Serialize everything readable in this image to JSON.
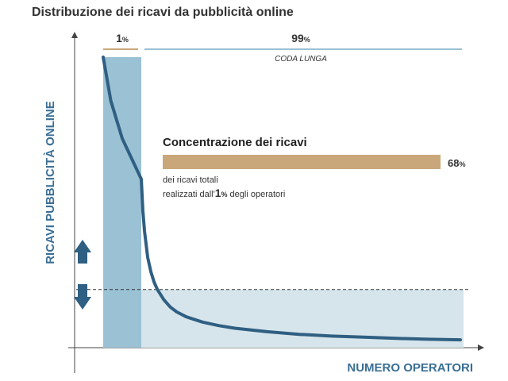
{
  "chart_data": {
    "type": "line",
    "title": "Distribuzione dei ricavi da pubblicità online",
    "xlabel": "NUMERO OPERATORI",
    "ylabel": "RICAVI PUBBLICITÀ ONLINE",
    "curve": {
      "x": [
        0,
        0.2,
        0.5,
        1,
        1.5,
        2,
        3,
        4,
        5,
        6,
        8,
        10,
        12,
        15,
        20,
        25,
        30,
        40,
        50,
        60,
        70,
        80,
        90,
        100
      ],
      "y": [
        100,
        85,
        72,
        58,
        47,
        40,
        31,
        26,
        22.5,
        20,
        16.5,
        14,
        12.3,
        10.6,
        8.8,
        7.6,
        6.7,
        5.5,
        4.6,
        4,
        3.6,
        3.2,
        2.9,
        2.7
      ]
    },
    "segments": {
      "head": {
        "label": "1",
        "unit": "%",
        "x_start": 0,
        "x_end": 1
      },
      "tail": {
        "label": "99",
        "unit": "%",
        "x_start": 1,
        "x_end": 100,
        "caption": "CODA LUNGA"
      }
    },
    "threshold": {
      "y": 20
    },
    "concentration": {
      "heading": "Concentrazione dei ricavi",
      "value": 68,
      "value_label": "68",
      "value_unit": "%",
      "desc_line1": "dei ricavi totali",
      "desc_line2_prefix": "realizzati dall'",
      "desc_line2_bold": "1",
      "desc_line2_bold_unit": "%",
      "desc_line2_suffix": " degli operatori"
    },
    "colors": {
      "curve": "#2f5f82",
      "head_fill": "#9bc1d4",
      "tail_fill": "#d6e5ec",
      "accent": "#c9a77a",
      "axis_text": "#3a6f96",
      "line_tail": "#9bc1d4"
    }
  }
}
